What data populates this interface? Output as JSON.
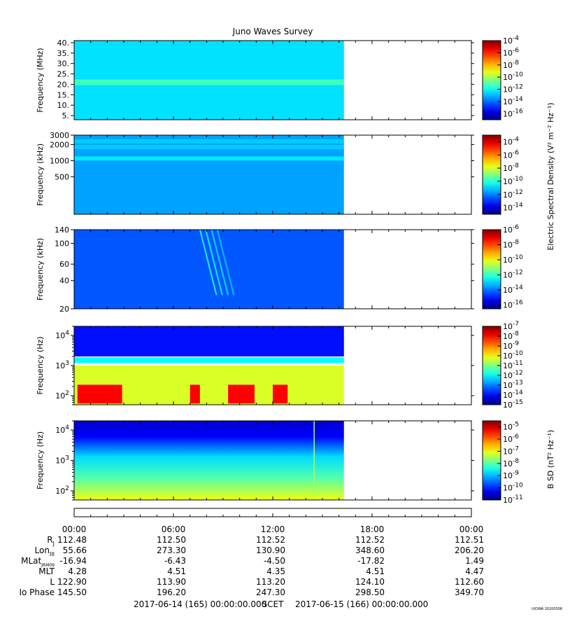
{
  "title": "Juno Waves Survey",
  "watermark": "UIOWA 20200306",
  "colorbar_labels": {
    "electric": "Electric Spectral Density (V² m⁻² Hz⁻¹)",
    "magnetic": "B SD (nT² Hz⁻¹)"
  },
  "chart_data": [
    {
      "type": "heatmap",
      "panel": "waves-40mhz",
      "ylabel": "Frequency (MHz)",
      "y_scale": "linear",
      "ylim": [
        3,
        41
      ],
      "y_ticks": [
        5,
        10,
        15,
        20,
        25,
        30,
        35,
        40
      ],
      "y_tick_labels": [
        "5.",
        "10.",
        "15.",
        "20.",
        "25.",
        "30.",
        "35.",
        "40."
      ],
      "data_coverage_hours": [
        0,
        16.3
      ],
      "colorbar_ticks": [
        "10^-16",
        "10^-14",
        "10^-12",
        "10^-10",
        "10^-8",
        "10^-6",
        "10^-4"
      ],
      "colorbar_range_exp": [
        -17,
        -4
      ],
      "background_level_exp": -12.5,
      "features": [
        {
          "desc": "bright band",
          "freq": 21,
          "level_exp": -11.3
        }
      ]
    },
    {
      "type": "heatmap",
      "panel": "waves-3mhz",
      "ylabel": "Frequency (kHz)",
      "y_scale": "log",
      "ylim": [
        100,
        3000
      ],
      "y_ticks": [
        500,
        1000,
        2000,
        3000
      ],
      "y_tick_labels": [
        "500",
        "1000",
        "2000",
        "3000"
      ],
      "data_coverage_hours": [
        0,
        16.3
      ],
      "colorbar_ticks": [
        "10^-14",
        "10^-12",
        "10^-10",
        "10^-8",
        "10^-6",
        "10^-4"
      ],
      "colorbar_range_exp": [
        -15,
        -3
      ],
      "background_level_exp": -11.6,
      "features": [
        {
          "desc": "band",
          "freq": 1100,
          "level_exp": -10.6
        },
        {
          "desc": "band",
          "freq": 1800,
          "level_exp": -11.0
        },
        {
          "desc": "band",
          "freq": 2300,
          "level_exp": -11.0
        }
      ]
    },
    {
      "type": "heatmap",
      "panel": "waves-140khz",
      "ylabel": "Frequency (kHz)",
      "y_scale": "log",
      "ylim": [
        20,
        140
      ],
      "y_ticks": [
        20,
        40,
        60,
        100,
        140
      ],
      "y_tick_labels": [
        "20",
        "40",
        "60",
        "100",
        "140"
      ],
      "data_coverage_hours": [
        0,
        16.3
      ],
      "colorbar_ticks": [
        "10^-16",
        "10^-14",
        "10^-12",
        "10^-10",
        "10^-8",
        "10^-6"
      ],
      "colorbar_range_exp": [
        -16.5,
        -6
      ],
      "background_level_exp": -14.3,
      "features": [
        {
          "desc": "drifting bursts",
          "hours": [
            7.6,
            9.6
          ],
          "freq_range": [
            28,
            140
          ],
          "level_exp": -12.2
        }
      ]
    },
    {
      "type": "heatmap",
      "panel": "waves-lfr-electric",
      "ylabel": "Frequency (Hz)",
      "y_scale": "log",
      "ylim": [
        50,
        20000
      ],
      "y_ticks": [
        100,
        1000,
        10000
      ],
      "y_tick_labels": [
        "10^2",
        "10^3",
        "10^4"
      ],
      "data_coverage_hours": [
        0,
        16.3
      ],
      "colorbar_ticks": [
        "10^-15",
        "10^-14",
        "10^-13",
        "10^-12",
        "10^-11",
        "10^-10",
        "10^-9",
        "10^-8",
        "10^-7"
      ],
      "colorbar_range_exp": [
        -15,
        -7
      ],
      "features": [
        {
          "desc": "high-frequency background",
          "freq_range": [
            2000,
            20000
          ],
          "level_exp": -13.9
        },
        {
          "desc": "cutoff band",
          "freq": 1500,
          "level_exp": -12.0
        },
        {
          "desc": "low-frequency emission",
          "freq_range": [
            50,
            1000
          ],
          "level_exp": -10.3
        },
        {
          "desc": "intense bursts",
          "hours_list": [
            [
              0.2,
              2.9
            ],
            [
              7.0,
              7.6
            ],
            [
              9.3,
              10.9
            ],
            [
              12.0,
              12.9
            ]
          ],
          "freq_range": [
            55,
            230
          ],
          "level_exp": -8.0
        }
      ]
    },
    {
      "type": "heatmap",
      "panel": "waves-lfr-magnetic",
      "ylabel": "Frequency (Hz)",
      "y_scale": "log",
      "ylim": [
        50,
        20000
      ],
      "y_ticks": [
        100,
        1000,
        10000
      ],
      "y_tick_labels": [
        "10^2",
        "10^3",
        "10^4"
      ],
      "data_coverage_hours": [
        0,
        16.3
      ],
      "colorbar_ticks": [
        "10^-11",
        "10^-10",
        "10^-9",
        "10^-8",
        "10^-7",
        "10^-6",
        "10^-5"
      ],
      "colorbar_range_exp": [
        -11,
        -4.5
      ],
      "features": [
        {
          "desc": "gradient high-to-low frequency",
          "freq_range": [
            50,
            20000
          ],
          "level_exp_range": [
            -10.5,
            -7.0
          ]
        },
        {
          "desc": "vertical spike",
          "hours": 14.5,
          "level_exp": -7.5
        }
      ]
    }
  ],
  "time_axis": {
    "labels": [
      "00:00",
      "06:00",
      "12:00",
      "18:00",
      "00:00"
    ],
    "hours": [
      0,
      6,
      12,
      18,
      24
    ]
  },
  "ephemeris": {
    "rows": [
      {
        "label": "R",
        "sub": "J",
        "values": [
          "112.48",
          "112.50",
          "112.52",
          "112.52",
          "112.51"
        ]
      },
      {
        "label": "Lon",
        "sub": "III",
        "values": [
          "55.66",
          "273.30",
          "130.90",
          "348.60",
          "206.20"
        ]
      },
      {
        "label": "MLat",
        "sub": "JRM09",
        "values": [
          "-16.94",
          "-6.43",
          "-4.50",
          "-17.82",
          "1.49"
        ]
      },
      {
        "label": "MLT",
        "sub": "",
        "values": [
          "4.28",
          "4.51",
          "4.35",
          "4.51",
          "4.47"
        ]
      },
      {
        "label": "L",
        "sub": "",
        "values": [
          "122.90",
          "113.90",
          "113.20",
          "124.10",
          "112.60"
        ]
      },
      {
        "label": "Io Phase",
        "sub": "",
        "values": [
          "145.50",
          "196.20",
          "247.30",
          "298.50",
          "349.70"
        ]
      }
    ]
  },
  "footer": {
    "start": "2017-06-14 (165) 00:00:00.000",
    "scet": "SCET",
    "end": "2017-06-15 (166) 00:00:00.000"
  }
}
